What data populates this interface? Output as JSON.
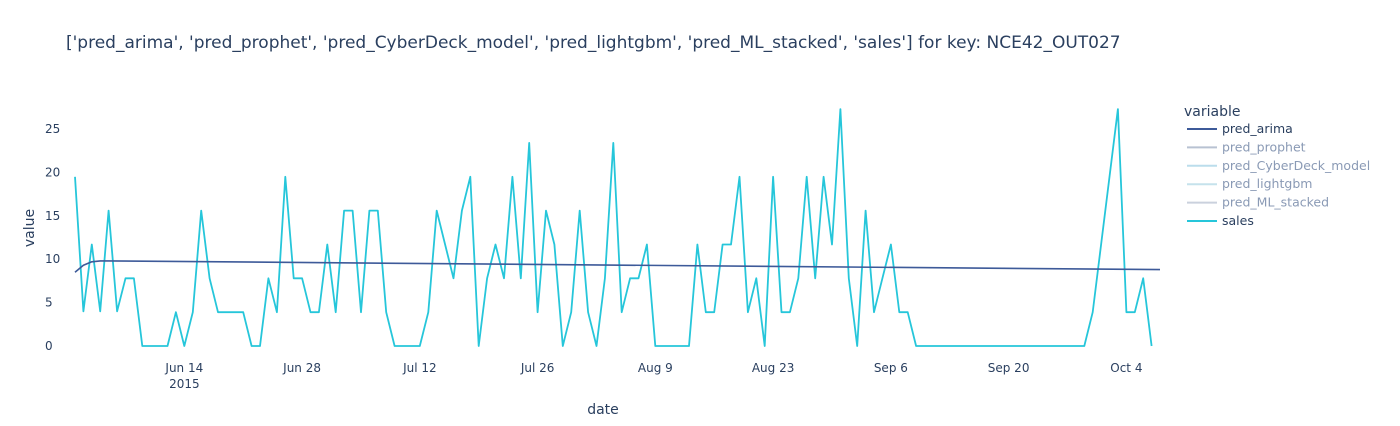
{
  "chart_data": {
    "type": "line",
    "title": "['pred_arima', 'pred_prophet', 'pred_CyberDeck_model', 'pred_lightgbm', 'pred_ML_stacked', 'sales'] for key: NCE42_OUT027",
    "xlabel": "date",
    "ylabel": "value",
    "x_range": [
      "2015-06-01",
      "2015-10-08"
    ],
    "ylim": [
      0,
      28
    ],
    "y_ticks": [
      0,
      5,
      10,
      15,
      20,
      25
    ],
    "x_ticks": [
      {
        "date": "2015-06-14",
        "label": "Jun 14",
        "sublabel": "2015"
      },
      {
        "date": "2015-06-28",
        "label": "Jun 28",
        "sublabel": ""
      },
      {
        "date": "2015-07-12",
        "label": "Jul 12",
        "sublabel": ""
      },
      {
        "date": "2015-07-26",
        "label": "Jul 26",
        "sublabel": ""
      },
      {
        "date": "2015-08-09",
        "label": "Aug 9",
        "sublabel": ""
      },
      {
        "date": "2015-08-23",
        "label": "Aug 23",
        "sublabel": ""
      },
      {
        "date": "2015-09-06",
        "label": "Sep 6",
        "sublabel": ""
      },
      {
        "date": "2015-09-20",
        "label": "Sep 20",
        "sublabel": ""
      },
      {
        "date": "2015-10-04",
        "label": "Oct 4",
        "sublabel": ""
      }
    ],
    "grid": false,
    "legend_title": "variable",
    "legend_position": "right",
    "series": [
      {
        "name": "pred_arima",
        "color": "#3d5a99",
        "visible": true,
        "points": [
          [
            "2015-06-01",
            8.5
          ],
          [
            "2015-06-02",
            9.3
          ],
          [
            "2015-06-03",
            9.7
          ],
          [
            "2015-06-04",
            9.8
          ],
          [
            "2015-06-05",
            9.8
          ],
          [
            "2015-10-08",
            8.8
          ]
        ]
      },
      {
        "name": "pred_prophet",
        "color": "#8a9ab5",
        "visible": false,
        "points": []
      },
      {
        "name": "pred_CyberDeck_model",
        "color": "#8fc7e0",
        "visible": false,
        "points": []
      },
      {
        "name": "pred_lightgbm",
        "color": "#9fd0e0",
        "visible": false,
        "points": []
      },
      {
        "name": "pred_ML_stacked",
        "color": "#a8b4c8",
        "visible": false,
        "points": []
      },
      {
        "name": "sales",
        "color": "#26c6da",
        "visible": true,
        "points": [
          [
            "2015-06-01",
            19.5
          ],
          [
            "2015-06-02",
            4
          ],
          [
            "2015-06-03",
            11.7
          ],
          [
            "2015-06-04",
            4
          ],
          [
            "2015-06-05",
            15.6
          ],
          [
            "2015-06-06",
            4
          ],
          [
            "2015-06-07",
            7.8
          ],
          [
            "2015-06-08",
            7.8
          ],
          [
            "2015-06-09",
            0
          ],
          [
            "2015-06-10",
            0
          ],
          [
            "2015-06-11",
            0
          ],
          [
            "2015-06-12",
            0
          ],
          [
            "2015-06-13",
            3.9
          ],
          [
            "2015-06-14",
            0
          ],
          [
            "2015-06-15",
            3.9
          ],
          [
            "2015-06-16",
            15.6
          ],
          [
            "2015-06-17",
            7.8
          ],
          [
            "2015-06-18",
            3.9
          ],
          [
            "2015-06-19",
            3.9
          ],
          [
            "2015-06-20",
            3.9
          ],
          [
            "2015-06-21",
            3.9
          ],
          [
            "2015-06-22",
            0
          ],
          [
            "2015-06-23",
            0
          ],
          [
            "2015-06-24",
            7.8
          ],
          [
            "2015-06-25",
            3.9
          ],
          [
            "2015-06-26",
            19.5
          ],
          [
            "2015-06-27",
            7.8
          ],
          [
            "2015-06-28",
            7.8
          ],
          [
            "2015-06-29",
            3.9
          ],
          [
            "2015-06-30",
            3.9
          ],
          [
            "2015-07-01",
            11.7
          ],
          [
            "2015-07-02",
            3.9
          ],
          [
            "2015-07-03",
            15.6
          ],
          [
            "2015-07-04",
            15.6
          ],
          [
            "2015-07-05",
            3.9
          ],
          [
            "2015-07-06",
            15.6
          ],
          [
            "2015-07-07",
            15.6
          ],
          [
            "2015-07-08",
            3.9
          ],
          [
            "2015-07-09",
            0
          ],
          [
            "2015-07-10",
            0
          ],
          [
            "2015-07-11",
            0
          ],
          [
            "2015-07-12",
            0
          ],
          [
            "2015-07-13",
            3.9
          ],
          [
            "2015-07-14",
            15.6
          ],
          [
            "2015-07-15",
            11.7
          ],
          [
            "2015-07-16",
            7.8
          ],
          [
            "2015-07-17",
            15.6
          ],
          [
            "2015-07-18",
            19.5
          ],
          [
            "2015-07-19",
            0
          ],
          [
            "2015-07-20",
            7.8
          ],
          [
            "2015-07-21",
            11.7
          ],
          [
            "2015-07-22",
            7.8
          ],
          [
            "2015-07-23",
            19.5
          ],
          [
            "2015-07-24",
            7.8
          ],
          [
            "2015-07-25",
            23.4
          ],
          [
            "2015-07-26",
            3.9
          ],
          [
            "2015-07-27",
            15.6
          ],
          [
            "2015-07-28",
            11.7
          ],
          [
            "2015-07-29",
            0
          ],
          [
            "2015-07-30",
            3.9
          ],
          [
            "2015-07-31",
            15.6
          ],
          [
            "2015-08-01",
            3.9
          ],
          [
            "2015-08-02",
            0
          ],
          [
            "2015-08-03",
            7.8
          ],
          [
            "2015-08-04",
            23.4
          ],
          [
            "2015-08-05",
            3.9
          ],
          [
            "2015-08-06",
            7.8
          ],
          [
            "2015-08-07",
            7.8
          ],
          [
            "2015-08-08",
            11.7
          ],
          [
            "2015-08-09",
            0
          ],
          [
            "2015-08-10",
            0
          ],
          [
            "2015-08-11",
            0
          ],
          [
            "2015-08-12",
            0
          ],
          [
            "2015-08-13",
            0
          ],
          [
            "2015-08-14",
            11.7
          ],
          [
            "2015-08-15",
            3.9
          ],
          [
            "2015-08-16",
            3.9
          ],
          [
            "2015-08-17",
            11.7
          ],
          [
            "2015-08-18",
            11.7
          ],
          [
            "2015-08-19",
            19.5
          ],
          [
            "2015-08-20",
            3.9
          ],
          [
            "2015-08-21",
            7.8
          ],
          [
            "2015-08-22",
            0
          ],
          [
            "2015-08-23",
            19.5
          ],
          [
            "2015-08-24",
            3.9
          ],
          [
            "2015-08-25",
            3.9
          ],
          [
            "2015-08-26",
            7.8
          ],
          [
            "2015-08-27",
            19.5
          ],
          [
            "2015-08-28",
            7.8
          ],
          [
            "2015-08-29",
            19.5
          ],
          [
            "2015-08-30",
            11.7
          ],
          [
            "2015-08-31",
            27.3
          ],
          [
            "2015-09-01",
            7.8
          ],
          [
            "2015-09-02",
            0
          ],
          [
            "2015-09-03",
            15.6
          ],
          [
            "2015-09-04",
            3.9
          ],
          [
            "2015-09-05",
            7.8
          ],
          [
            "2015-09-06",
            11.7
          ],
          [
            "2015-09-07",
            3.9
          ],
          [
            "2015-09-08",
            3.9
          ],
          [
            "2015-09-09",
            0
          ],
          [
            "2015-09-10",
            0
          ],
          [
            "2015-09-11",
            0
          ],
          [
            "2015-09-12",
            0
          ],
          [
            "2015-09-13",
            0
          ],
          [
            "2015-09-14",
            0
          ],
          [
            "2015-09-15",
            0
          ],
          [
            "2015-09-16",
            0
          ],
          [
            "2015-09-17",
            0
          ],
          [
            "2015-09-18",
            0
          ],
          [
            "2015-09-19",
            0
          ],
          [
            "2015-09-20",
            0
          ],
          [
            "2015-09-21",
            0
          ],
          [
            "2015-09-22",
            0
          ],
          [
            "2015-09-23",
            0
          ],
          [
            "2015-09-24",
            0
          ],
          [
            "2015-09-25",
            0
          ],
          [
            "2015-09-26",
            0
          ],
          [
            "2015-09-27",
            0
          ],
          [
            "2015-09-28",
            0
          ],
          [
            "2015-09-29",
            0
          ],
          [
            "2015-09-30",
            3.9
          ],
          [
            "2015-10-01",
            11.7
          ],
          [
            "2015-10-02",
            19.5
          ],
          [
            "2015-10-03",
            27.3
          ],
          [
            "2015-10-04",
            3.9
          ],
          [
            "2015-10-05",
            3.9
          ],
          [
            "2015-10-06",
            7.8
          ],
          [
            "2015-10-07",
            0
          ]
        ]
      }
    ]
  }
}
